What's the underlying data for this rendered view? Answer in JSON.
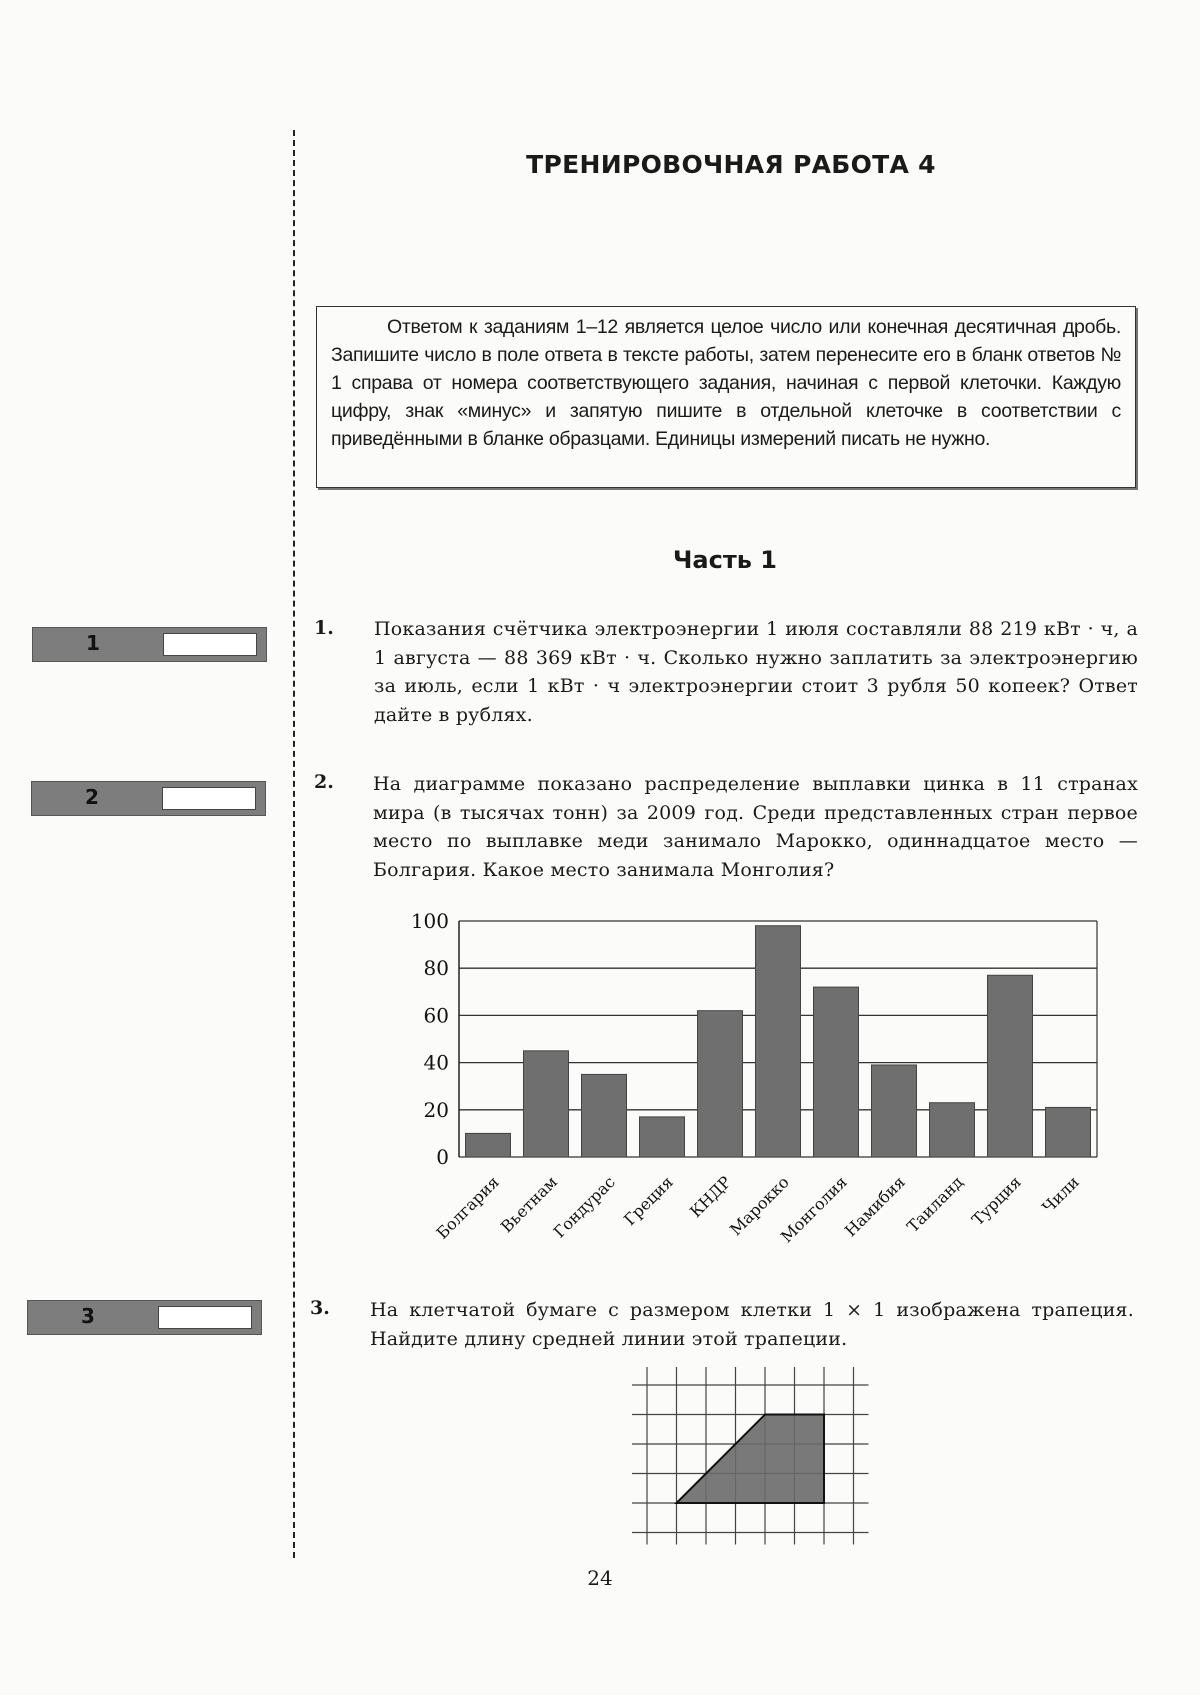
{
  "page_title": "ТРЕНИРОВОЧНАЯ РАБОТА 4",
  "instructions": "Ответом к заданиям 1–12 является целое число или конечная десятичная дробь. Запишите число в поле ответа в тексте работы, затем перенесите его в бланк ответов № 1 справа от номера соответствующего задания, начиная с первой клеточки. Каждую цифру, знак «минус» и запятую пишите в отдельной клеточке в соответствии с приведёнными в бланке образцами. Единицы измерений писать не нужно.",
  "part_title": "Часть 1",
  "answer_boxes": [
    {
      "label": "1",
      "value": ""
    },
    {
      "label": "2",
      "value": ""
    },
    {
      "label": "3",
      "value": ""
    }
  ],
  "tasks": [
    {
      "number": "1.",
      "text": "Показания счётчика электроэнергии 1 июля составляли 88 219 кВт · ч, а 1 августа — 88 369 кВт · ч. Сколько нужно заплатить за электроэнергию за июль, если 1 кВт · ч электроэнергии стоит 3 рубля 50 копеек? Ответ дайте в рублях."
    },
    {
      "number": "2.",
      "text": "На диаграмме показано распределение выплавки цинка в 11 странах мира (в тысячах тонн) за 2009 год. Среди представленных стран первое место по выплавке меди занимало Марокко, одиннадцатое место — Болгария. Какое место занимала Монголия?"
    },
    {
      "number": "3.",
      "text": "На клетчатой бумаге с размером клетки 1 × 1 изображена трапеция. Найдите длину средней линии этой трапеции."
    }
  ],
  "chart_data": {
    "type": "bar",
    "categories": [
      "Болгария",
      "Вьетнам",
      "Гондурас",
      "Греция",
      "КНДР",
      "Марокко",
      "Монголия",
      "Намибия",
      "Таиланд",
      "Турция",
      "Чили"
    ],
    "values": [
      10,
      45,
      35,
      17,
      62,
      98,
      72,
      39,
      23,
      77,
      21
    ],
    "yticks": [
      "0",
      "20",
      "40",
      "60",
      "80",
      "100"
    ],
    "ylim": [
      0,
      100
    ],
    "grid": true,
    "bar_color": "#6f6f6f"
  },
  "trapezoid_figure": {
    "grid_cells": {
      "cols": 7,
      "rows": 5
    },
    "vertices_in_cells": [
      [
        1,
        4
      ],
      [
        4,
        1
      ],
      [
        6,
        1
      ],
      [
        6,
        4
      ]
    ],
    "fill_color": "#6a6a6a"
  },
  "page_number": "24"
}
